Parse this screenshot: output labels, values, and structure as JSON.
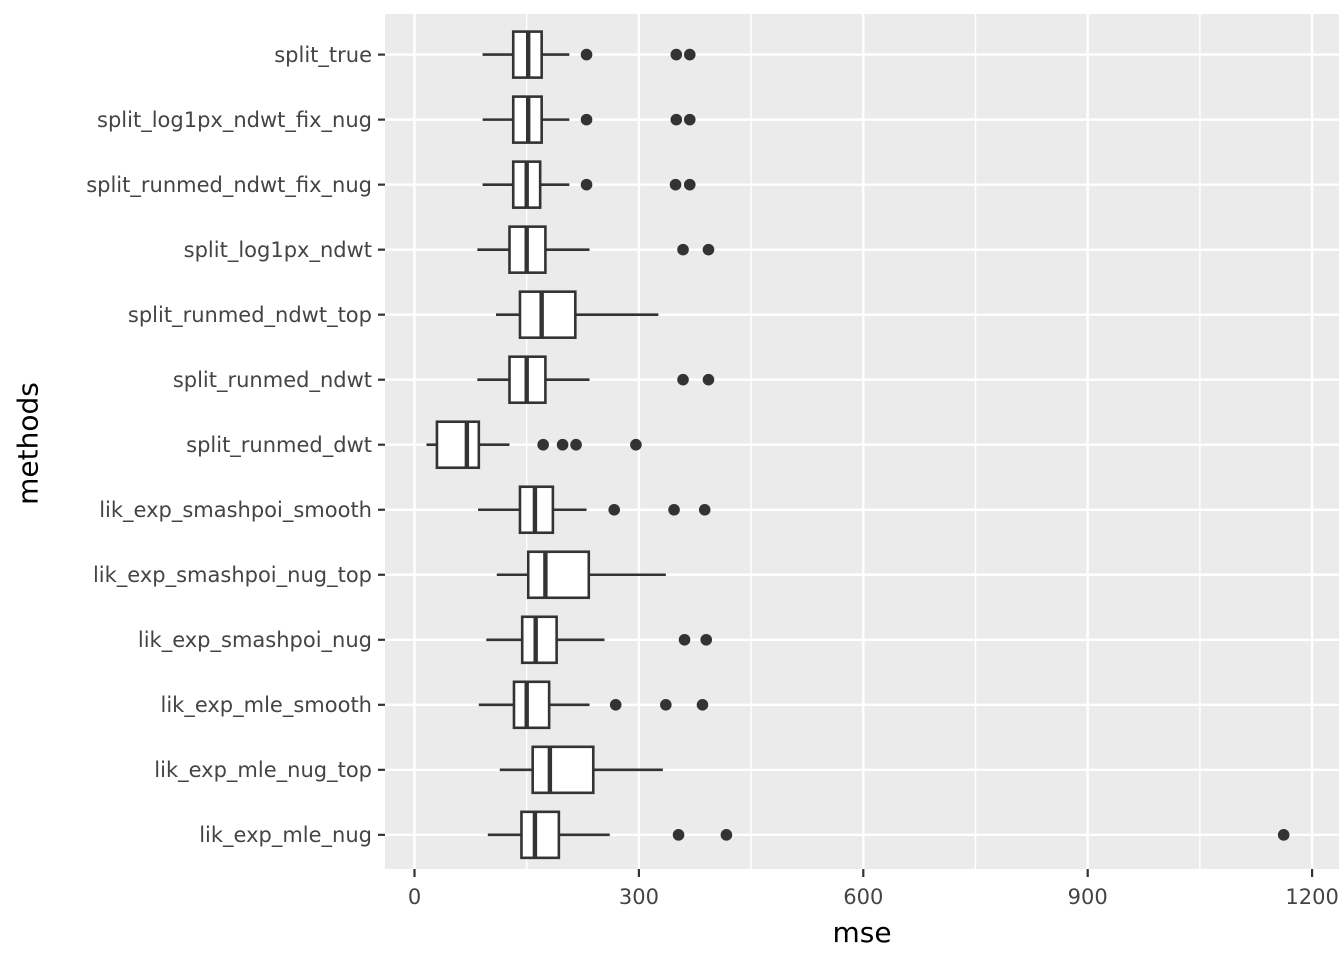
{
  "chart_data": {
    "type": "boxplot",
    "orientation": "horizontal",
    "title": "",
    "xlabel": "mse",
    "ylabel": "methods",
    "x_tick_labels": [
      "0",
      "300",
      "600",
      "900",
      "1200"
    ],
    "x_tick_values": [
      0,
      300,
      600,
      900,
      1200
    ],
    "x_minor_values": [
      150,
      450,
      750,
      1050
    ],
    "xlim": [
      -40,
      1236
    ],
    "grid": "on",
    "legend": "none",
    "categories_top_to_bottom": [
      "split_true",
      "split_log1px_ndwt_fix_nug",
      "split_runmed_ndwt_fix_nug",
      "split_log1px_ndwt",
      "split_runmed_ndwt_top",
      "split_runmed_ndwt",
      "split_runmed_dwt",
      "lik_exp_smashpoi_smooth",
      "lik_exp_smashpoi_nug_top",
      "lik_exp_smashpoi_nug",
      "lik_exp_mle_smooth",
      "lik_exp_mle_nug_top",
      "lik_exp_mle_nug"
    ],
    "boxes": [
      {
        "method": "split_true",
        "whisker_low": 91,
        "q1": 132,
        "median": 152,
        "q3": 170,
        "whisker_high": 207,
        "outliers": [
          230,
          350,
          368
        ]
      },
      {
        "method": "split_log1px_ndwt_fix_nug",
        "whisker_low": 91,
        "q1": 132,
        "median": 152,
        "q3": 170,
        "whisker_high": 207,
        "outliers": [
          230,
          350,
          368
        ]
      },
      {
        "method": "split_runmed_ndwt_fix_nug",
        "whisker_low": 91,
        "q1": 132,
        "median": 150,
        "q3": 168,
        "whisker_high": 207,
        "outliers": [
          230,
          349,
          368
        ]
      },
      {
        "method": "split_log1px_ndwt",
        "whisker_low": 84,
        "q1": 127,
        "median": 150,
        "q3": 175,
        "whisker_high": 234,
        "outliers": [
          359,
          393
        ]
      },
      {
        "method": "split_runmed_ndwt_top",
        "whisker_low": 109,
        "q1": 141,
        "median": 170,
        "q3": 215,
        "whisker_high": 326,
        "outliers": []
      },
      {
        "method": "split_runmed_ndwt",
        "whisker_low": 84,
        "q1": 127,
        "median": 150,
        "q3": 175,
        "whisker_high": 234,
        "outliers": [
          359,
          393
        ]
      },
      {
        "method": "split_runmed_dwt",
        "whisker_low": 16,
        "q1": 30,
        "median": 70,
        "q3": 86,
        "whisker_high": 127,
        "outliers": [
          172,
          198,
          216,
          296
        ]
      },
      {
        "method": "lik_exp_smashpoi_smooth",
        "whisker_low": 85,
        "q1": 141,
        "median": 161,
        "q3": 185,
        "whisker_high": 230,
        "outliers": [
          267,
          347,
          388
        ]
      },
      {
        "method": "lik_exp_smashpoi_nug_top",
        "whisker_low": 110,
        "q1": 152,
        "median": 175,
        "q3": 233,
        "whisker_high": 336,
        "outliers": []
      },
      {
        "method": "lik_exp_smashpoi_nug",
        "whisker_low": 96,
        "q1": 144,
        "median": 162,
        "q3": 190,
        "whisker_high": 254,
        "outliers": [
          361,
          390
        ]
      },
      {
        "method": "lik_exp_mle_smooth",
        "whisker_low": 86,
        "q1": 133,
        "median": 150,
        "q3": 180,
        "whisker_high": 234,
        "outliers": [
          269,
          336,
          385
        ]
      },
      {
        "method": "lik_exp_mle_nug_top",
        "whisker_low": 114,
        "q1": 158,
        "median": 181,
        "q3": 239,
        "whisker_high": 332,
        "outliers": []
      },
      {
        "method": "lik_exp_mle_nug",
        "whisker_low": 98,
        "q1": 143,
        "median": 161,
        "q3": 193,
        "whisker_high": 261,
        "outliers": [
          353,
          417,
          1162
        ]
      }
    ],
    "colors": {
      "panel_background": "#EBEBEB",
      "grid": "#FFFFFF",
      "box_stroke": "#333333",
      "box_fill": "#FFFFFF",
      "outlier": "#333333",
      "axis_text": "#444444",
      "axis_title": "#000000",
      "tick_mark": "#333333"
    }
  }
}
